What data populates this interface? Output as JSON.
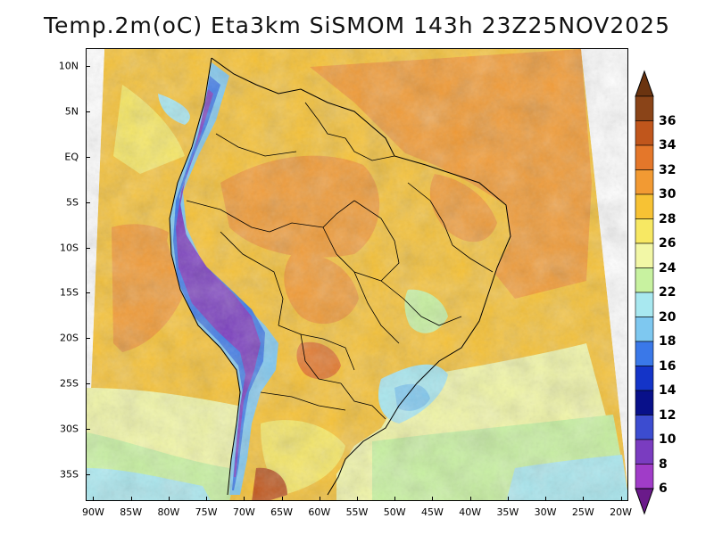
{
  "title": "Temp.2m(oC) Eta3km SiSMOM 143h 23Z25NOV2025",
  "map": {
    "lat_labels": [
      "10N",
      "5N",
      "EQ",
      "5S",
      "10S",
      "15S",
      "20S",
      "25S",
      "30S",
      "35S"
    ],
    "lat_values": [
      10,
      5,
      0,
      -5,
      -10,
      -15,
      -20,
      -25,
      -30,
      -35
    ],
    "lon_labels": [
      "90W",
      "85W",
      "80W",
      "75W",
      "70W",
      "65W",
      "60W",
      "55W",
      "50W",
      "45W",
      "40W",
      "35W",
      "30W",
      "25W",
      "20W"
    ],
    "lon_values": [
      -90,
      -85,
      -80,
      -75,
      -70,
      -65,
      -60,
      -55,
      -50,
      -45,
      -40,
      -35,
      -30,
      -25,
      -20
    ],
    "lat_range": [
      -38,
      12
    ],
    "lon_range": [
      -91,
      -19
    ]
  },
  "colorbar": {
    "labels": [
      "36",
      "34",
      "32",
      "30",
      "28",
      "26",
      "24",
      "22",
      "20",
      "18",
      "16",
      "14",
      "12",
      "10",
      "8",
      "6"
    ],
    "colors": [
      "#6b3410",
      "#8a4418",
      "#c0561c",
      "#e4772a",
      "#f29a33",
      "#f7c234",
      "#f7e863",
      "#f2f7a6",
      "#c8f2a0",
      "#a8e8f0",
      "#7ec8f0",
      "#3a78e8",
      "#1434c8",
      "#08108a",
      "#3c4cd0",
      "#7a3cc0",
      "#a03cc8",
      "#6a1a8a"
    ]
  }
}
